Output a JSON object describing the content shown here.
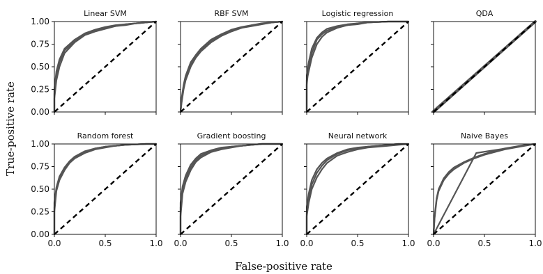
{
  "chart_data": {
    "type": "line",
    "xlabel": "False-positive rate",
    "ylabel": "True-positive rate",
    "xlim": [
      0,
      1
    ],
    "ylim": [
      0,
      1
    ],
    "x_ticks": [
      "0.0",
      "0.5",
      "1.0"
    ],
    "y_ticks": [
      "0.00",
      "0.25",
      "0.50",
      "0.75",
      "1.00"
    ],
    "grid": false,
    "colors": {
      "curve": "#555555",
      "diagonal": "#000000"
    },
    "panels": [
      {
        "title": "Linear SVM",
        "series": [
          {
            "x": [
              0,
              0,
              0.02,
              0.05,
              0.1,
              0.2,
              0.3,
              0.4,
              0.5,
              0.6,
              0.7,
              0.8,
              0.9,
              1
            ],
            "y": [
              0,
              0.2,
              0.4,
              0.55,
              0.68,
              0.78,
              0.86,
              0.9,
              0.93,
              0.95,
              0.97,
              0.98,
              0.99,
              1
            ]
          },
          {
            "x": [
              0,
              0,
              0.02,
              0.05,
              0.1,
              0.2,
              0.3,
              0.4,
              0.5,
              0.6,
              0.7,
              0.8,
              0.9,
              1
            ],
            "y": [
              0,
              0.25,
              0.45,
              0.58,
              0.7,
              0.8,
              0.87,
              0.91,
              0.94,
              0.96,
              0.97,
              0.98,
              0.99,
              1
            ]
          },
          {
            "x": [
              0,
              0,
              0.02,
              0.05,
              0.1,
              0.2,
              0.3,
              0.4,
              0.5,
              0.6,
              0.7,
              0.8,
              0.9,
              1
            ],
            "y": [
              0,
              0.15,
              0.35,
              0.5,
              0.65,
              0.77,
              0.85,
              0.89,
              0.92,
              0.95,
              0.96,
              0.98,
              0.99,
              1
            ]
          }
        ]
      },
      {
        "title": "RBF SVM",
        "series": [
          {
            "x": [
              0,
              0.01,
              0.03,
              0.05,
              0.1,
              0.15,
              0.2,
              0.3,
              0.4,
              0.5,
              0.6,
              0.7,
              0.8,
              0.9,
              1
            ],
            "y": [
              0,
              0.15,
              0.3,
              0.4,
              0.55,
              0.63,
              0.7,
              0.8,
              0.86,
              0.91,
              0.94,
              0.96,
              0.98,
              0.99,
              1
            ]
          },
          {
            "x": [
              0,
              0.01,
              0.03,
              0.05,
              0.1,
              0.15,
              0.2,
              0.3,
              0.4,
              0.5,
              0.6,
              0.7,
              0.8,
              0.9,
              1
            ],
            "y": [
              0,
              0.12,
              0.28,
              0.37,
              0.52,
              0.61,
              0.68,
              0.78,
              0.85,
              0.9,
              0.93,
              0.96,
              0.98,
              0.99,
              1
            ]
          },
          {
            "x": [
              0,
              0.01,
              0.03,
              0.05,
              0.1,
              0.15,
              0.2,
              0.3,
              0.4,
              0.5,
              0.6,
              0.7,
              0.8,
              0.9,
              1
            ],
            "y": [
              0,
              0.1,
              0.25,
              0.35,
              0.5,
              0.6,
              0.67,
              0.77,
              0.84,
              0.89,
              0.93,
              0.95,
              0.97,
              0.99,
              1
            ]
          }
        ]
      },
      {
        "title": "Logistic regression",
        "series": [
          {
            "x": [
              0,
              0,
              0.02,
              0.05,
              0.1,
              0.15,
              0.2,
              0.3,
              0.4,
              0.5,
              0.6,
              0.8,
              1
            ],
            "y": [
              0,
              0.3,
              0.5,
              0.65,
              0.8,
              0.86,
              0.9,
              0.94,
              0.96,
              0.98,
              0.99,
              1,
              1
            ]
          },
          {
            "x": [
              0,
              0,
              0.02,
              0.05,
              0.1,
              0.15,
              0.2,
              0.3,
              0.4,
              0.5,
              0.6,
              0.8,
              1
            ],
            "y": [
              0,
              0.4,
              0.55,
              0.7,
              0.82,
              0.88,
              0.92,
              0.95,
              0.97,
              0.98,
              0.99,
              1,
              1
            ]
          },
          {
            "x": [
              0,
              0,
              0.02,
              0.05,
              0.1,
              0.15,
              0.2,
              0.3,
              0.4,
              0.5,
              0.6,
              0.8,
              1
            ],
            "y": [
              0,
              0.35,
              0.45,
              0.6,
              0.75,
              0.83,
              0.88,
              0.93,
              0.96,
              0.97,
              0.99,
              1,
              1
            ]
          }
        ]
      },
      {
        "title": "QDA",
        "series": [
          {
            "x": [
              0,
              1
            ],
            "y": [
              0,
              1
            ]
          },
          {
            "x": [
              0,
              1
            ],
            "y": [
              0.01,
              1
            ]
          },
          {
            "x": [
              0,
              1
            ],
            "y": [
              0.005,
              1
            ]
          }
        ]
      },
      {
        "title": "Random forest",
        "series": [
          {
            "x": [
              0,
              0,
              0.02,
              0.05,
              0.1,
              0.15,
              0.2,
              0.3,
              0.4,
              0.5,
              0.6,
              0.7,
              0.8,
              0.9,
              1
            ],
            "y": [
              0,
              0.3,
              0.5,
              0.62,
              0.72,
              0.8,
              0.85,
              0.91,
              0.95,
              0.97,
              0.98,
              0.99,
              0.995,
              1,
              1
            ]
          },
          {
            "x": [
              0,
              0,
              0.02,
              0.05,
              0.1,
              0.15,
              0.2,
              0.3,
              0.4,
              0.5,
              0.6,
              0.7,
              0.8,
              0.9,
              1
            ],
            "y": [
              0,
              0.35,
              0.52,
              0.64,
              0.74,
              0.81,
              0.86,
              0.92,
              0.95,
              0.97,
              0.98,
              0.99,
              0.995,
              1,
              1
            ]
          },
          {
            "x": [
              0,
              0,
              0.02,
              0.05,
              0.1,
              0.15,
              0.2,
              0.3,
              0.4,
              0.5,
              0.6,
              0.7,
              0.8,
              0.9,
              1
            ],
            "y": [
              0,
              0.25,
              0.48,
              0.6,
              0.71,
              0.79,
              0.84,
              0.9,
              0.94,
              0.96,
              0.98,
              0.99,
              0.995,
              1,
              1
            ]
          }
        ]
      },
      {
        "title": "Gradient boosting",
        "series": [
          {
            "x": [
              0,
              0,
              0.02,
              0.05,
              0.1,
              0.15,
              0.2,
              0.3,
              0.4,
              0.5,
              0.6,
              0.7,
              0.8,
              1
            ],
            "y": [
              0,
              0.3,
              0.5,
              0.62,
              0.74,
              0.82,
              0.87,
              0.92,
              0.95,
              0.97,
              0.98,
              0.99,
              1,
              1
            ]
          },
          {
            "x": [
              0,
              0,
              0.02,
              0.05,
              0.1,
              0.15,
              0.2,
              0.3,
              0.4,
              0.5,
              0.6,
              0.7,
              0.8,
              1
            ],
            "y": [
              0,
              0.35,
              0.53,
              0.65,
              0.77,
              0.84,
              0.89,
              0.93,
              0.96,
              0.97,
              0.98,
              0.99,
              1,
              1
            ]
          },
          {
            "x": [
              0,
              0,
              0.02,
              0.05,
              0.1,
              0.15,
              0.2,
              0.3,
              0.4,
              0.5,
              0.6,
              0.7,
              0.8,
              1
            ],
            "y": [
              0,
              0.2,
              0.45,
              0.58,
              0.71,
              0.8,
              0.85,
              0.91,
              0.94,
              0.96,
              0.98,
              0.99,
              1,
              1
            ]
          }
        ]
      },
      {
        "title": "Neural network",
        "series": [
          {
            "x": [
              0,
              0,
              0.02,
              0.05,
              0.1,
              0.15,
              0.2,
              0.3,
              0.4,
              0.5,
              0.6,
              0.7,
              0.8,
              0.9,
              1
            ],
            "y": [
              0,
              0.25,
              0.4,
              0.55,
              0.68,
              0.76,
              0.82,
              0.89,
              0.93,
              0.95,
              0.97,
              0.98,
              0.99,
              1,
              1
            ]
          },
          {
            "x": [
              0,
              0,
              0.02,
              0.05,
              0.1,
              0.15,
              0.2,
              0.3,
              0.4,
              0.5,
              0.6,
              0.7,
              0.8,
              0.9,
              1
            ],
            "y": [
              0,
              0.3,
              0.45,
              0.6,
              0.72,
              0.79,
              0.84,
              0.9,
              0.94,
              0.96,
              0.97,
              0.98,
              0.99,
              1,
              1
            ]
          },
          {
            "x": [
              0,
              0,
              0.02,
              0.05,
              0.1,
              0.15,
              0.2,
              0.3,
              0.4,
              0.5,
              0.6,
              0.7,
              0.8,
              0.9,
              1
            ],
            "y": [
              0,
              0.2,
              0.35,
              0.5,
              0.63,
              0.72,
              0.79,
              0.87,
              0.91,
              0.94,
              0.96,
              0.97,
              0.98,
              0.99,
              1
            ]
          }
        ]
      },
      {
        "title": "Naive Bayes",
        "series": [
          {
            "x": [
              0,
              0.01,
              0.03,
              0.05,
              0.1,
              0.15,
              0.2,
              0.3,
              0.4,
              0.5,
              0.6,
              0.7,
              0.8,
              0.9,
              1
            ],
            "y": [
              0,
              0.2,
              0.4,
              0.5,
              0.62,
              0.69,
              0.74,
              0.8,
              0.85,
              0.89,
              0.92,
              0.95,
              0.97,
              0.99,
              1
            ]
          },
          {
            "x": [
              0,
              0.01,
              0.03,
              0.05,
              0.1,
              0.15,
              0.2,
              0.3,
              0.4,
              0.5,
              0.6,
              0.7,
              0.8,
              0.9,
              1
            ],
            "y": [
              0,
              0.18,
              0.38,
              0.48,
              0.6,
              0.67,
              0.72,
              0.79,
              0.84,
              0.88,
              0.91,
              0.94,
              0.96,
              0.98,
              1
            ]
          },
          {
            "x": [
              0,
              0.42,
              1
            ],
            "y": [
              0,
              0.9,
              1
            ]
          }
        ]
      }
    ]
  }
}
